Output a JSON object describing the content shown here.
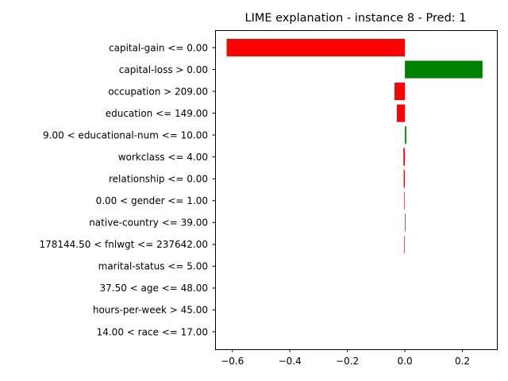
{
  "chart_data": {
    "type": "bar",
    "orientation": "horizontal",
    "title": "LIME explanation - instance 8 - Pred: 1",
    "xlabel": "",
    "ylabel": "",
    "xlim": [
      -0.66,
      0.32
    ],
    "xticks": [
      -0.6,
      -0.4,
      -0.2,
      0.0,
      0.2
    ],
    "xtick_labels": [
      "−0.6",
      "−0.4",
      "−0.2",
      "0.0",
      "0.2"
    ],
    "grid": false,
    "legend": "none",
    "colors": {
      "positive": "#008000",
      "negative": "#ff0000"
    },
    "categories": [
      "capital-gain <= 0.00",
      "capital-loss > 0.00",
      "occupation > 209.00",
      "education <= 149.00",
      "9.00 < educational-num <= 10.00",
      "workclass <= 4.00",
      "relationship <= 0.00",
      "0.00 < gender <= 1.00",
      "native-country <= 39.00",
      "178144.50 < fnlwgt <= 237642.00",
      "marital-status <= 5.00",
      "37.50 < age <= 48.00",
      "hours-per-week > 45.00",
      "14.00 < race <= 17.00"
    ],
    "values": [
      -0.62,
      0.27,
      -0.036,
      -0.028,
      0.005,
      -0.005,
      -0.004,
      -0.002,
      0.002,
      -0.002,
      0.0,
      0.0,
      0.0,
      0.0
    ]
  }
}
